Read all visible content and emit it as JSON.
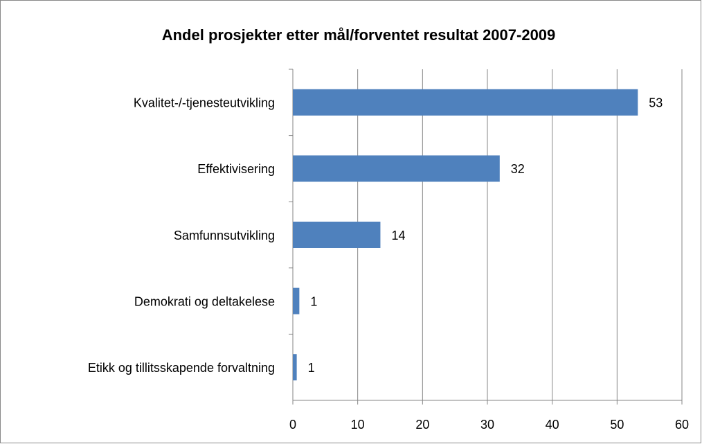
{
  "chart_data": {
    "type": "bar",
    "orientation": "horizontal",
    "title": "Andel prosjekter etter mål/forventet resultat 2007-2009",
    "categories": [
      "Kvalitet-/-tjenesteutvikling",
      "Effektivisering",
      "Samfunnsutvikling",
      "Demokrati og deltakelese",
      "Etikk og tillitsskapende forvaltning"
    ],
    "values": [
      53.2,
      31.9,
      13.5,
      1.0,
      0.6
    ],
    "value_labels": [
      "53",
      "32",
      "14",
      "1",
      "1"
    ],
    "color": "#4f81bd",
    "xlim": [
      0,
      60
    ],
    "xticks": [
      0,
      10,
      20,
      30,
      40,
      50,
      60
    ],
    "grid": true
  }
}
